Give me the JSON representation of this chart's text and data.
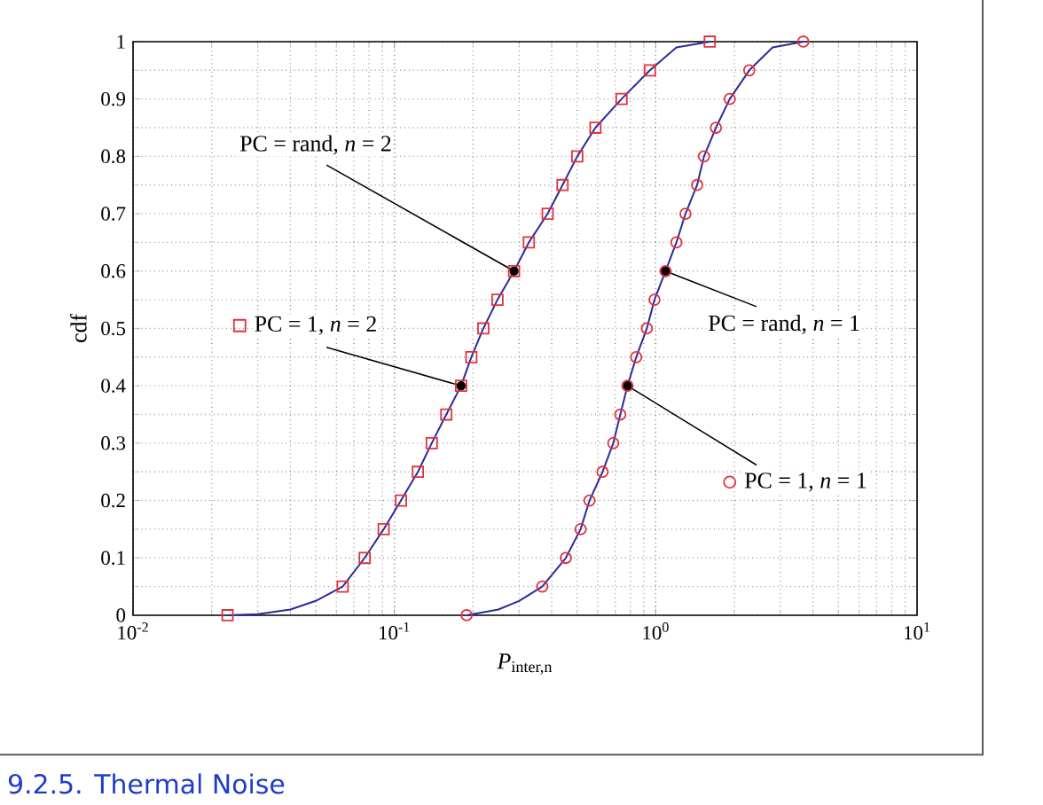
{
  "chart_data": {
    "type": "line",
    "xlabel": "*P*$_{inter,n}$",
    "ylabel": "cdf",
    "log": "x",
    "grid": true,
    "legend": "center",
    "xlim": [
      0.01,
      10
    ],
    "xticks": [
      {
        "value": 0.01,
        "label": "10$^{-2}$"
      },
      {
        "value": 0.1,
        "label": "10$^{-1}$"
      },
      {
        "value": 1,
        "label": "10$^{0}$"
      },
      {
        "value": 10,
        "label": "10$^{1}$"
      }
    ],
    "ylim": [
      0,
      1
    ],
    "yticks": [
      0,
      0.1,
      0.2,
      0.3,
      0.4,
      0.5,
      0.6,
      0.7,
      0.8,
      0.9,
      1
    ],
    "series": [
      {
        "name": "PC = rand, *n* = 2",
        "color": "#2b2b9a",
        "marker": "none",
        "x": [
          0.023,
          0.03,
          0.04,
          0.05,
          0.0634,
          0.077,
          0.091,
          0.106,
          0.123,
          0.139,
          0.158,
          0.18,
          0.197,
          0.219,
          0.248,
          0.287,
          0.327,
          0.386,
          0.44,
          0.501,
          0.588,
          0.74,
          0.95,
          1.2,
          1.61
        ],
        "values": [
          0,
          0.002,
          0.01,
          0.025,
          0.05,
          0.1,
          0.15,
          0.2,
          0.25,
          0.3,
          0.35,
          0.4,
          0.45,
          0.5,
          0.55,
          0.6,
          0.65,
          0.7,
          0.75,
          0.8,
          0.85,
          0.9,
          0.95,
          0.99,
          1
        ]
      },
      {
        "type": "scatter",
        "name": "PC = 1, *n* = 2",
        "color": "#e0323c",
        "marker": "square",
        "x": [
          0.023,
          0.0634,
          0.077,
          0.091,
          0.106,
          0.123,
          0.139,
          0.158,
          0.18,
          0.197,
          0.219,
          0.248,
          0.287,
          0.327,
          0.386,
          0.44,
          0.501,
          0.588,
          0.74,
          0.95,
          1.61
        ],
        "values": [
          0,
          0.05,
          0.1,
          0.15,
          0.2,
          0.25,
          0.3,
          0.35,
          0.4,
          0.45,
          0.5,
          0.55,
          0.6,
          0.65,
          0.7,
          0.75,
          0.8,
          0.85,
          0.9,
          0.95,
          1
        ]
      },
      {
        "name": "PC = rand, *n* = 1",
        "color": "#2b2b9a",
        "marker": "none",
        "x": [
          0.189,
          0.25,
          0.3,
          0.368,
          0.453,
          0.516,
          0.558,
          0.626,
          0.688,
          0.732,
          0.78,
          0.842,
          0.925,
          0.989,
          1.09,
          1.2,
          1.3,
          1.44,
          1.53,
          1.7,
          1.92,
          2.28,
          2.8,
          3.67
        ],
        "values": [
          0,
          0.01,
          0.025,
          0.05,
          0.1,
          0.15,
          0.2,
          0.25,
          0.3,
          0.35,
          0.4,
          0.45,
          0.5,
          0.55,
          0.6,
          0.65,
          0.7,
          0.75,
          0.8,
          0.85,
          0.9,
          0.95,
          0.99,
          1
        ]
      },
      {
        "type": "scatter",
        "name": "PC = 1, *n* = 1",
        "color": "#e0323c",
        "marker": "circle",
        "x": [
          0.189,
          0.368,
          0.453,
          0.516,
          0.558,
          0.626,
          0.688,
          0.732,
          0.78,
          0.842,
          0.925,
          0.989,
          1.09,
          1.2,
          1.3,
          1.44,
          1.53,
          1.7,
          1.92,
          2.28,
          3.67
        ],
        "values": [
          0,
          0.05,
          0.1,
          0.15,
          0.2,
          0.25,
          0.3,
          0.35,
          0.4,
          0.45,
          0.5,
          0.55,
          0.6,
          0.65,
          0.7,
          0.75,
          0.8,
          0.85,
          0.9,
          0.95,
          1
        ]
      }
    ],
    "annotations": [
      "9.2.5. Thermal Noise"
    ]
  }
}
